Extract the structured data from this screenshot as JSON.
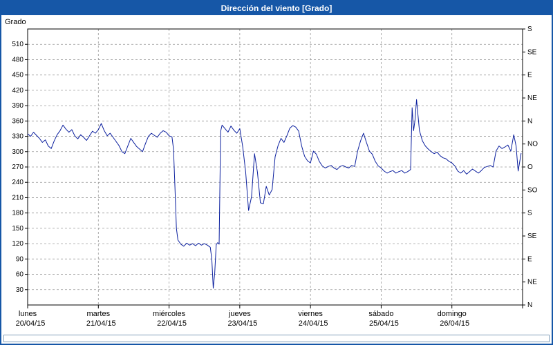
{
  "titlebar": {
    "title": "Dirección del viento [Grado]"
  },
  "colors": {
    "line": "#0b1f9e",
    "grid": "#999999",
    "axis": "#000000",
    "titlebar_bg": "#1657a7",
    "titlebar_text": "#ffffff",
    "window_border": "#1657a7",
    "plot_bg": "#ffffff"
  },
  "chart_data": {
    "type": "line",
    "title": "Dirección del viento [Grado]",
    "ylabel": "Grado",
    "grid": "dashed",
    "ylim": [
      0,
      540
    ],
    "xlim_hours": [
      0,
      168
    ],
    "y_ticks_left": [
      30,
      60,
      90,
      120,
      150,
      180,
      210,
      240,
      270,
      300,
      330,
      360,
      390,
      420,
      450,
      480,
      510
    ],
    "right_axis": {
      "ticks": [
        {
          "value": 540,
          "label": "S"
        },
        {
          "value": 495,
          "label": "SE"
        },
        {
          "value": 450,
          "label": "E"
        },
        {
          "value": 405,
          "label": "NE"
        },
        {
          "value": 360,
          "label": "N"
        },
        {
          "value": 315,
          "label": "NO"
        },
        {
          "value": 270,
          "label": "O"
        },
        {
          "value": 225,
          "label": "SO"
        },
        {
          "value": 180,
          "label": "S"
        },
        {
          "value": 135,
          "label": "SE"
        },
        {
          "value": 90,
          "label": "E"
        },
        {
          "value": 45,
          "label": "NE"
        },
        {
          "value": 0,
          "label": "N"
        }
      ]
    },
    "x_days": [
      {
        "name": "lunes",
        "date": "20/04/15"
      },
      {
        "name": "martes",
        "date": "21/04/15"
      },
      {
        "name": "miércoles",
        "date": "22/04/15"
      },
      {
        "name": "jueves",
        "date": "23/04/15"
      },
      {
        "name": "viernes",
        "date": "24/04/15"
      },
      {
        "name": "sábado",
        "date": "25/04/15"
      },
      {
        "name": "domingo",
        "date": "26/04/15"
      }
    ],
    "series": [
      {
        "name": "Dirección del viento",
        "points": [
          [
            0,
            335
          ],
          [
            1,
            330
          ],
          [
            2,
            338
          ],
          [
            3,
            332
          ],
          [
            4,
            326
          ],
          [
            5,
            318
          ],
          [
            6,
            323
          ],
          [
            7,
            311
          ],
          [
            8,
            306
          ],
          [
            9,
            321
          ],
          [
            10,
            333
          ],
          [
            11,
            341
          ],
          [
            12,
            352
          ],
          [
            13,
            344
          ],
          [
            14,
            338
          ],
          [
            15,
            343
          ],
          [
            16,
            331
          ],
          [
            17,
            325
          ],
          [
            18,
            333
          ],
          [
            19,
            328
          ],
          [
            20,
            322
          ],
          [
            21,
            331
          ],
          [
            22,
            340
          ],
          [
            23,
            336
          ],
          [
            24,
            343
          ],
          [
            25,
            355
          ],
          [
            26,
            341
          ],
          [
            27,
            331
          ],
          [
            28,
            336
          ],
          [
            29,
            328
          ],
          [
            30,
            320
          ],
          [
            31,
            312
          ],
          [
            32,
            300
          ],
          [
            33,
            296
          ],
          [
            34,
            311
          ],
          [
            35,
            326
          ],
          [
            36,
            318
          ],
          [
            37,
            310
          ],
          [
            38,
            305
          ],
          [
            39,
            300
          ],
          [
            40,
            316
          ],
          [
            41,
            330
          ],
          [
            42,
            336
          ],
          [
            43,
            332
          ],
          [
            44,
            328
          ],
          [
            45,
            336
          ],
          [
            46,
            341
          ],
          [
            47,
            338
          ],
          [
            48,
            331
          ],
          [
            49,
            329
          ],
          [
            49.5,
            305
          ],
          [
            50,
            230
          ],
          [
            50.5,
            150
          ],
          [
            51,
            127
          ],
          [
            52,
            119
          ],
          [
            53,
            115
          ],
          [
            54,
            121
          ],
          [
            55,
            117
          ],
          [
            56,
            120
          ],
          [
            57,
            116
          ],
          [
            58,
            121
          ],
          [
            59,
            117
          ],
          [
            60,
            120
          ],
          [
            61,
            117
          ],
          [
            62,
            113
          ],
          [
            62.5,
            90
          ],
          [
            63,
            33
          ],
          [
            63.5,
            62
          ],
          [
            64,
            118
          ],
          [
            64.5,
            122
          ],
          [
            65,
            119
          ],
          [
            65.5,
            340
          ],
          [
            66,
            352
          ],
          [
            67,
            345
          ],
          [
            68,
            338
          ],
          [
            69,
            350
          ],
          [
            70,
            342
          ],
          [
            71,
            336
          ],
          [
            72,
            345
          ],
          [
            73,
            310
          ],
          [
            74,
            260
          ],
          [
            75,
            185
          ],
          [
            76,
            212
          ],
          [
            77,
            296
          ],
          [
            78,
            260
          ],
          [
            79,
            200
          ],
          [
            80,
            198
          ],
          [
            81,
            232
          ],
          [
            82,
            215
          ],
          [
            83,
            226
          ],
          [
            84,
            290
          ],
          [
            85,
            312
          ],
          [
            86,
            326
          ],
          [
            87,
            318
          ],
          [
            88,
            331
          ],
          [
            89,
            346
          ],
          [
            90,
            351
          ],
          [
            91,
            348
          ],
          [
            92,
            340
          ],
          [
            93,
            311
          ],
          [
            94,
            291
          ],
          [
            95,
            282
          ],
          [
            96,
            278
          ],
          [
            97,
            301
          ],
          [
            98,
            295
          ],
          [
            99,
            281
          ],
          [
            100,
            272
          ],
          [
            101,
            268
          ],
          [
            102,
            271
          ],
          [
            103,
            273
          ],
          [
            104,
            268
          ],
          [
            105,
            265
          ],
          [
            106,
            271
          ],
          [
            107,
            273
          ],
          [
            108,
            270
          ],
          [
            109,
            268
          ],
          [
            110,
            273
          ],
          [
            111,
            271
          ],
          [
            112,
            301
          ],
          [
            113,
            321
          ],
          [
            114,
            336
          ],
          [
            115,
            318
          ],
          [
            116,
            301
          ],
          [
            117,
            295
          ],
          [
            118,
            281
          ],
          [
            119,
            272
          ],
          [
            120,
            268
          ],
          [
            121,
            262
          ],
          [
            122,
            258
          ],
          [
            123,
            261
          ],
          [
            124,
            263
          ],
          [
            125,
            258
          ],
          [
            126,
            261
          ],
          [
            127,
            263
          ],
          [
            128,
            258
          ],
          [
            129,
            261
          ],
          [
            130,
            265
          ],
          [
            130.5,
            386
          ],
          [
            131,
            341
          ],
          [
            131.5,
            362
          ],
          [
            132,
            402
          ],
          [
            132.5,
            371
          ],
          [
            133,
            341
          ],
          [
            134,
            321
          ],
          [
            135,
            311
          ],
          [
            136,
            305
          ],
          [
            137,
            300
          ],
          [
            138,
            296
          ],
          [
            139,
            299
          ],
          [
            140,
            292
          ],
          [
            141,
            288
          ],
          [
            142,
            286
          ],
          [
            143,
            281
          ],
          [
            144,
            278
          ],
          [
            145,
            272
          ],
          [
            146,
            262
          ],
          [
            147,
            258
          ],
          [
            148,
            263
          ],
          [
            149,
            256
          ],
          [
            150,
            261
          ],
          [
            151,
            266
          ],
          [
            152,
            262
          ],
          [
            153,
            258
          ],
          [
            154,
            263
          ],
          [
            155,
            269
          ],
          [
            156,
            271
          ],
          [
            157,
            273
          ],
          [
            158,
            270
          ],
          [
            159,
            301
          ],
          [
            160,
            311
          ],
          [
            161,
            306
          ],
          [
            162,
            309
          ],
          [
            163,
            313
          ],
          [
            164,
            301
          ],
          [
            165,
            333
          ],
          [
            165.8,
            311
          ],
          [
            166.5,
            262
          ],
          [
            167.5,
            297
          ]
        ]
      }
    ]
  }
}
